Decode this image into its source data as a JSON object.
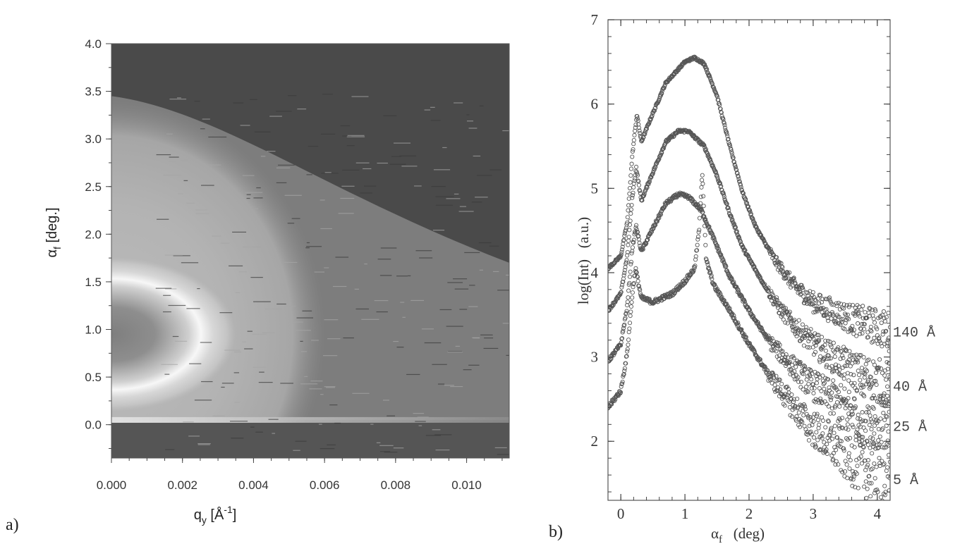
{
  "chart_data": [
    {
      "type": "heatmap",
      "panel_label": "a)",
      "xlabel": {
        "base": "q",
        "sub": "y",
        "unit_open": " [Å",
        "sup": "-1",
        "unit_close": "]"
      },
      "ylabel": {
        "base": "α",
        "sub": "f",
        "unit": " [deg.]"
      },
      "xlim": [
        0.0,
        0.0112
      ],
      "ylim": [
        -0.35,
        4.0
      ],
      "x_ticks": [
        0.0,
        0.002,
        0.004,
        0.006,
        0.008,
        0.01
      ],
      "x_tick_labels": [
        "0.000",
        "0.002",
        "0.004",
        "0.006",
        "0.008",
        "0.010"
      ],
      "y_ticks": [
        0.0,
        0.5,
        1.0,
        1.5,
        2.0,
        2.5,
        3.0,
        3.5,
        4.0
      ],
      "y_tick_labels": [
        "0.0",
        "0.5",
        "1.0",
        "1.5",
        "2.0",
        "2.5",
        "3.0",
        "3.5",
        "4.0"
      ],
      "colormap": "grayscale",
      "features": {
        "specular_line_alpha_f": 0.05,
        "ring_center": [
          0.0,
          0.95
        ],
        "ring_radius_qy": 0.0025,
        "ring_radius_alpha": 0.6,
        "outer_ridge_qy": 0.006,
        "cutoff_alpha_at_qy0": 3.45,
        "cutoff_alpha_at_qy_max": 1.7
      }
    },
    {
      "type": "scatter",
      "panel_label": "b)",
      "xlabel": {
        "base": "α",
        "sub": "f",
        "unit": "   (deg)"
      },
      "ylabel": "log(Int)   (a.u.)",
      "xlim": [
        -0.2,
        4.2
      ],
      "ylim": [
        1.3,
        7.0
      ],
      "x_ticks": [
        0,
        1,
        2,
        3,
        4
      ],
      "x_tick_labels": [
        "0",
        "1",
        "2",
        "3",
        "4"
      ],
      "y_ticks": [
        2,
        3,
        4,
        5,
        6,
        7
      ],
      "y_tick_labels": [
        "2",
        "3",
        "4",
        "5",
        "6",
        "7"
      ],
      "series": [
        {
          "name": "140 Å",
          "points": [
            [
              -0.2,
              4.05
            ],
            [
              0.0,
              4.2
            ],
            [
              0.1,
              4.6
            ],
            [
              0.18,
              5.4
            ],
            [
              0.25,
              5.88
            ],
            [
              0.32,
              5.55
            ],
            [
              0.45,
              5.8
            ],
            [
              0.7,
              6.25
            ],
            [
              1.0,
              6.5
            ],
            [
              1.15,
              6.55
            ],
            [
              1.3,
              6.48
            ],
            [
              1.5,
              6.1
            ],
            [
              1.7,
              5.5
            ],
            [
              1.9,
              4.95
            ],
            [
              2.1,
              4.55
            ],
            [
              2.4,
              4.15
            ],
            [
              2.7,
              3.85
            ],
            [
              3.0,
              3.65
            ],
            [
              3.3,
              3.55
            ],
            [
              3.6,
              3.45
            ],
            [
              3.9,
              3.38
            ],
            [
              4.2,
              3.3
            ]
          ],
          "scatter": 0.1
        },
        {
          "name": "40 Å",
          "points": [
            [
              -0.2,
              3.55
            ],
            [
              0.0,
              3.75
            ],
            [
              0.1,
              4.2
            ],
            [
              0.18,
              4.9
            ],
            [
              0.24,
              5.25
            ],
            [
              0.32,
              4.85
            ],
            [
              0.45,
              5.1
            ],
            [
              0.7,
              5.55
            ],
            [
              0.9,
              5.68
            ],
            [
              1.05,
              5.68
            ],
            [
              1.3,
              5.5
            ],
            [
              1.5,
              5.15
            ],
            [
              1.7,
              4.7
            ],
            [
              1.9,
              4.3
            ],
            [
              2.2,
              3.9
            ],
            [
              2.5,
              3.55
            ],
            [
              2.8,
              3.3
            ],
            [
              3.1,
              3.1
            ],
            [
              3.4,
              2.95
            ],
            [
              3.7,
              2.82
            ],
            [
              4.0,
              2.72
            ],
            [
              4.2,
              2.66
            ]
          ],
          "scatter": 0.12
        },
        {
          "name": "25 Å",
          "points": [
            [
              -0.2,
              2.95
            ],
            [
              0.0,
              3.15
            ],
            [
              0.1,
              3.6
            ],
            [
              0.18,
              4.3
            ],
            [
              0.24,
              4.55
            ],
            [
              0.32,
              4.25
            ],
            [
              0.45,
              4.45
            ],
            [
              0.7,
              4.82
            ],
            [
              0.9,
              4.93
            ],
            [
              1.05,
              4.9
            ],
            [
              1.25,
              4.75
            ],
            [
              1.45,
              4.4
            ],
            [
              1.7,
              3.95
            ],
            [
              2.0,
              3.55
            ],
            [
              2.3,
              3.2
            ],
            [
              2.6,
              2.95
            ],
            [
              2.9,
              2.72
            ],
            [
              3.2,
              2.55
            ],
            [
              3.5,
              2.4
            ],
            [
              3.8,
              2.28
            ],
            [
              4.2,
              2.18
            ]
          ],
          "scatter": 0.15
        },
        {
          "name": "5 Å",
          "points": [
            [
              -0.2,
              2.4
            ],
            [
              0.0,
              2.6
            ],
            [
              0.1,
              3.05
            ],
            [
              0.18,
              3.75
            ],
            [
              0.23,
              4.05
            ],
            [
              0.32,
              3.7
            ],
            [
              0.5,
              3.65
            ],
            [
              0.8,
              3.75
            ],
            [
              1.0,
              3.9
            ],
            [
              1.15,
              4.05
            ],
            [
              1.22,
              4.5
            ],
            [
              1.27,
              5.2
            ],
            [
              1.33,
              4.15
            ],
            [
              1.45,
              3.85
            ],
            [
              1.7,
              3.55
            ],
            [
              2.0,
              3.15
            ],
            [
              2.3,
              2.8
            ],
            [
              2.6,
              2.5
            ],
            [
              2.9,
              2.22
            ],
            [
              3.2,
              2.02
            ],
            [
              3.5,
              1.85
            ],
            [
              3.8,
              1.7
            ],
            [
              4.2,
              1.55
            ]
          ],
          "scatter": 0.18
        }
      ]
    }
  ]
}
